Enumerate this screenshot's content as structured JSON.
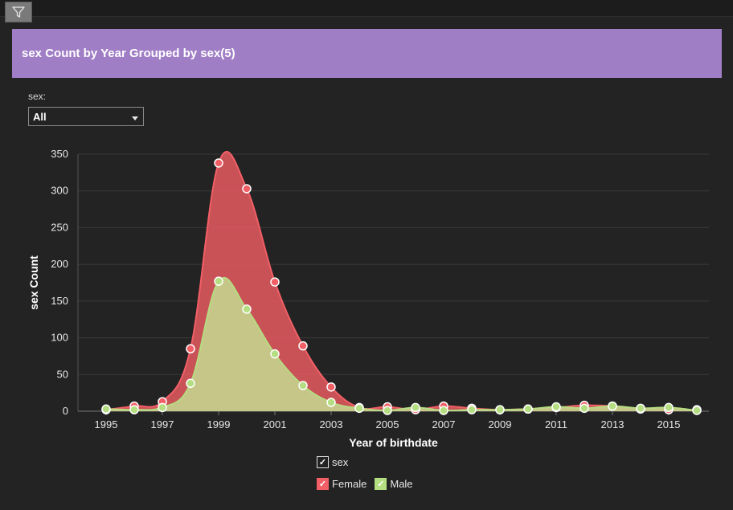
{
  "toolbar": {
    "filter_icon": "filter-icon"
  },
  "panel": {
    "title": "sex Count by Year Grouped by sex(5)",
    "header_color": "#a07ec6"
  },
  "filter": {
    "label": "sex:",
    "selected": "All"
  },
  "legend": {
    "group_label": "sex",
    "items": [
      {
        "name": "Female",
        "color": "#f25f66"
      },
      {
        "name": "Male",
        "color": "#b5dd81"
      }
    ]
  },
  "chart_data": {
    "type": "area",
    "xlabel": "Year of birthdate",
    "ylabel": "sex Count",
    "ylim": [
      0,
      350
    ],
    "yticks": [
      0,
      50,
      100,
      150,
      200,
      250,
      300,
      350
    ],
    "xticks": [
      1995,
      1997,
      1999,
      2001,
      2003,
      2005,
      2007,
      2009,
      2011,
      2013,
      2015
    ],
    "x": [
      1995,
      1996,
      1997,
      1998,
      1999,
      2000,
      2001,
      2002,
      2003,
      2004,
      2005,
      2006,
      2007,
      2008,
      2009,
      2010,
      2011,
      2012,
      2013,
      2014,
      2015,
      2016
    ],
    "grid": true,
    "series": [
      {
        "name": "Female",
        "color": "#f25f66",
        "values": [
          2,
          7,
          13,
          85,
          338,
          303,
          176,
          89,
          33,
          5,
          6,
          2,
          7,
          4,
          2,
          3,
          5,
          8,
          7,
          3,
          2,
          2
        ]
      },
      {
        "name": "Male",
        "color": "#b5dd81",
        "values": [
          3,
          2,
          5,
          38,
          177,
          139,
          78,
          35,
          12,
          4,
          1,
          5,
          1,
          2,
          2,
          3,
          6,
          4,
          7,
          4,
          5,
          1
        ]
      }
    ]
  }
}
